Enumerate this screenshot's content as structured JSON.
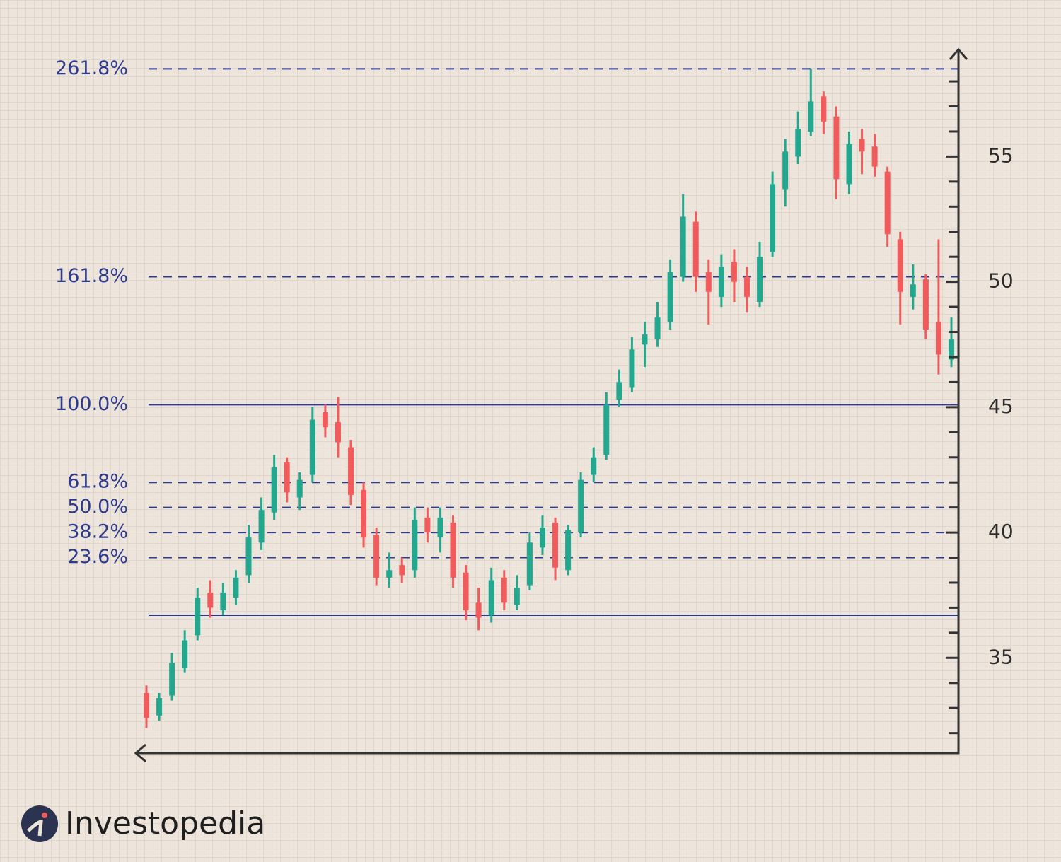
{
  "chart_data": {
    "type": "candlestick",
    "open": [
      33.6,
      32.7,
      33.5,
      34.6,
      35.9,
      37.6,
      36.9,
      37.4,
      38.3,
      39.6,
      40.8,
      42.8,
      41.4,
      42.3,
      44.8,
      44.4,
      43.4,
      41.7,
      39.9,
      38.2,
      38.7,
      38.5,
      40.6,
      39.8,
      40.4,
      38.4,
      37.2,
      36.7,
      38.2,
      37.1,
      37.9,
      39.4,
      40.4,
      38.5,
      40.0,
      42.3,
      43.1,
      45.3,
      45.8,
      47.5,
      47.7,
      48.4,
      50.2,
      52.4,
      50.4,
      49.4,
      50.8,
      50.2,
      49.2,
      51.2,
      53.7,
      55.0,
      56.0,
      57.4,
      56.6,
      53.9,
      55.7,
      55.4,
      54.4,
      51.7,
      49.4,
      50.1,
      48.4,
      46.9
    ],
    "high": [
      33.9,
      33.6,
      35.2,
      36.1,
      37.8,
      38.1,
      38.0,
      38.5,
      40.3,
      41.4,
      43.1,
      43.0,
      42.4,
      45.0,
      45.1,
      45.4,
      43.7,
      42.0,
      40.2,
      39.2,
      39.0,
      41.0,
      41.0,
      41.0,
      40.7,
      38.7,
      37.8,
      38.6,
      38.5,
      38.3,
      40.0,
      40.7,
      40.6,
      40.3,
      42.4,
      43.4,
      45.6,
      46.5,
      47.8,
      48.4,
      49.2,
      50.9,
      53.5,
      52.8,
      50.9,
      51.1,
      51.3,
      50.6,
      51.6,
      54.4,
      55.7,
      56.8,
      58.5,
      57.6,
      57.0,
      56.0,
      56.1,
      55.9,
      54.6,
      52.0,
      50.7,
      50.3,
      51.7,
      48.6
    ],
    "low": [
      32.2,
      32.5,
      33.3,
      34.4,
      35.7,
      36.6,
      36.7,
      37.1,
      38.0,
      39.3,
      40.5,
      41.2,
      40.9,
      42.0,
      43.8,
      43.0,
      41.1,
      39.4,
      37.9,
      37.8,
      38.0,
      38.2,
      39.6,
      39.2,
      37.8,
      36.5,
      36.1,
      36.4,
      36.9,
      36.9,
      37.7,
      39.1,
      38.1,
      38.3,
      39.8,
      42.0,
      42.9,
      45.0,
      45.6,
      46.6,
      47.4,
      48.1,
      50.0,
      49.6,
      48.3,
      49.0,
      49.2,
      48.8,
      49.0,
      51.0,
      53.0,
      54.7,
      55.8,
      55.9,
      53.3,
      53.5,
      54.3,
      54.2,
      51.4,
      48.3,
      48.9,
      47.7,
      46.3,
      46.6
    ],
    "close": [
      32.6,
      33.4,
      34.8,
      35.7,
      37.4,
      37.0,
      37.6,
      38.2,
      39.8,
      40.9,
      42.6,
      41.6,
      42.1,
      44.5,
      44.2,
      43.6,
      41.5,
      39.8,
      38.2,
      38.5,
      38.3,
      40.5,
      40.0,
      40.6,
      38.2,
      36.9,
      36.6,
      38.1,
      37.2,
      37.8,
      39.6,
      40.2,
      38.6,
      40.1,
      42.1,
      43.0,
      45.1,
      46.0,
      47.3,
      47.9,
      48.6,
      50.4,
      52.6,
      50.2,
      49.6,
      50.6,
      50.0,
      49.4,
      51.0,
      53.9,
      55.2,
      56.1,
      57.2,
      56.4,
      54.1,
      55.5,
      55.2,
      54.6,
      51.9,
      49.6,
      49.9,
      48.1,
      47.1,
      47.7
    ],
    "up_color": "#23a88f",
    "down_color": "#f25b5b",
    "ylim": [
      31.2,
      59.3
    ],
    "yticks": [
      35,
      40,
      45,
      50,
      55
    ],
    "yticks_minor": [
      32,
      33,
      34,
      36,
      37,
      38,
      39,
      41,
      42,
      43,
      44,
      46,
      47,
      48,
      49,
      51,
      52,
      53,
      54,
      56,
      57,
      58
    ],
    "fib_levels": [
      {
        "label": "261.8%",
        "value": 58.5,
        "dashed": true
      },
      {
        "label": "161.8%",
        "value": 50.2,
        "dashed": true
      },
      {
        "label": "100.0%",
        "value": 45.1,
        "dashed": false
      },
      {
        "label": "61.8%",
        "value": 42.0,
        "dashed": true
      },
      {
        "label": "50.0%",
        "value": 41.0,
        "dashed": true
      },
      {
        "label": "38.2%",
        "value": 40.0,
        "dashed": true
      },
      {
        "label": "23.6%",
        "value": 39.0,
        "dashed": true
      }
    ],
    "base_level": 36.7,
    "level_color": "#2e3a8c",
    "brand": "Investopedia"
  }
}
